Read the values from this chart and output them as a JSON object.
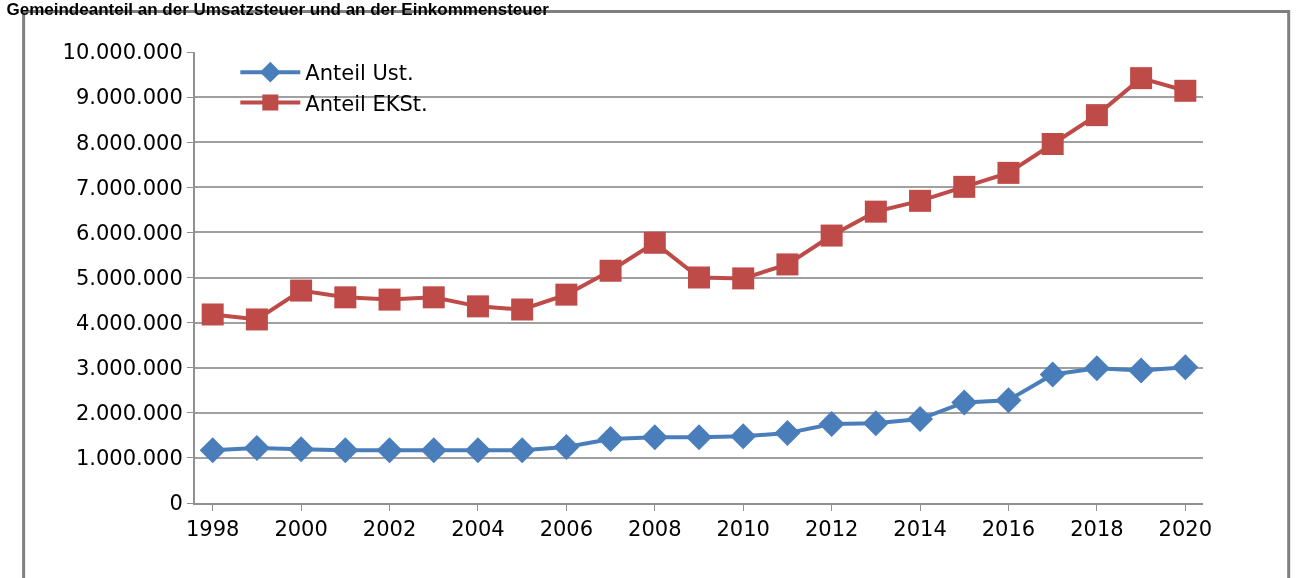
{
  "chart_data": {
    "type": "line",
    "title": "Gemeindeanteil an der Umsatzsteuer und an der Einkommensteuer",
    "x": [
      1998,
      1999,
      2000,
      2001,
      2002,
      2003,
      2004,
      2005,
      2006,
      2007,
      2008,
      2009,
      2010,
      2011,
      2012,
      2013,
      2014,
      2015,
      2016,
      2017,
      2018,
      2019,
      2020
    ],
    "series": [
      {
        "name": "Anteil Ust.",
        "color": "#4a7ebb",
        "marker": "diamond",
        "values": [
          1170000,
          1220000,
          1190000,
          1170000,
          1170000,
          1170000,
          1170000,
          1170000,
          1240000,
          1420000,
          1460000,
          1460000,
          1480000,
          1550000,
          1750000,
          1770000,
          1860000,
          2230000,
          2280000,
          2850000,
          2990000,
          2940000,
          3010000
        ]
      },
      {
        "name": "Anteil EKSt.",
        "color": "#be4b48",
        "marker": "square",
        "values": [
          4180000,
          4070000,
          4710000,
          4560000,
          4510000,
          4560000,
          4360000,
          4290000,
          4620000,
          5150000,
          5770000,
          5000000,
          4980000,
          5290000,
          5930000,
          6460000,
          6700000,
          7010000,
          7320000,
          7960000,
          8600000,
          9420000,
          9140000
        ]
      }
    ],
    "xlim": [
      1997.6,
      2020.4
    ],
    "xticks": [
      1998,
      2000,
      2002,
      2004,
      2006,
      2008,
      2010,
      2012,
      2014,
      2016,
      2018,
      2020
    ],
    "ylim": [
      0,
      10000000
    ],
    "yticks": [
      0,
      {
        "value": 1000000,
        "label": "1.000.000"
      },
      {
        "value": 2000000,
        "label": "2.000.000"
      },
      {
        "value": 3000000,
        "label": "3.000.000"
      },
      {
        "value": 4000000,
        "label": "4.000.000"
      },
      {
        "value": 5000000,
        "label": "5.000.000"
      },
      {
        "value": 6000000,
        "label": "6.000.000"
      },
      {
        "value": 7000000,
        "label": "7.000.000"
      },
      {
        "value": 8000000,
        "label": "8.000.000"
      },
      {
        "value": 9000000,
        "label": "9.000.000"
      },
      {
        "value": 10000000,
        "label": "10.000.000"
      }
    ],
    "grid": "y",
    "legend": "top left",
    "line_style": "solid"
  }
}
